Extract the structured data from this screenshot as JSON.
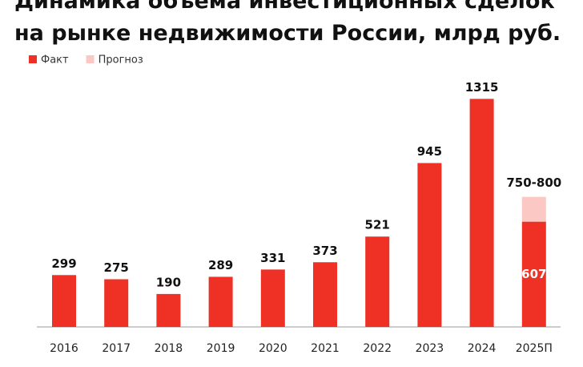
{
  "chart_data": {
    "type": "stacked_bar",
    "title": [
      "Динамика объема инвестиционных сделок",
      "на рынке недвижимости России, млрд руб."
    ],
    "categories": [
      "2016",
      "2017",
      "2018",
      "2019",
      "2020",
      "2021",
      "2022",
      "2023",
      "2024",
      "2025П"
    ],
    "series": [
      {
        "name": "Факт",
        "color": "#ee3124",
        "values": [
          299,
          275,
          190,
          289,
          331,
          373,
          521,
          945,
          1315,
          607
        ]
      },
      {
        "name": "Прогноз",
        "color": "#fbc8c3",
        "values": [
          null,
          null,
          null,
          null,
          null,
          null,
          null,
          null,
          null,
          143
        ]
      }
    ],
    "forecast_label": "750-800",
    "ylim": [
      0,
      1400
    ],
    "legend": "top-left"
  }
}
